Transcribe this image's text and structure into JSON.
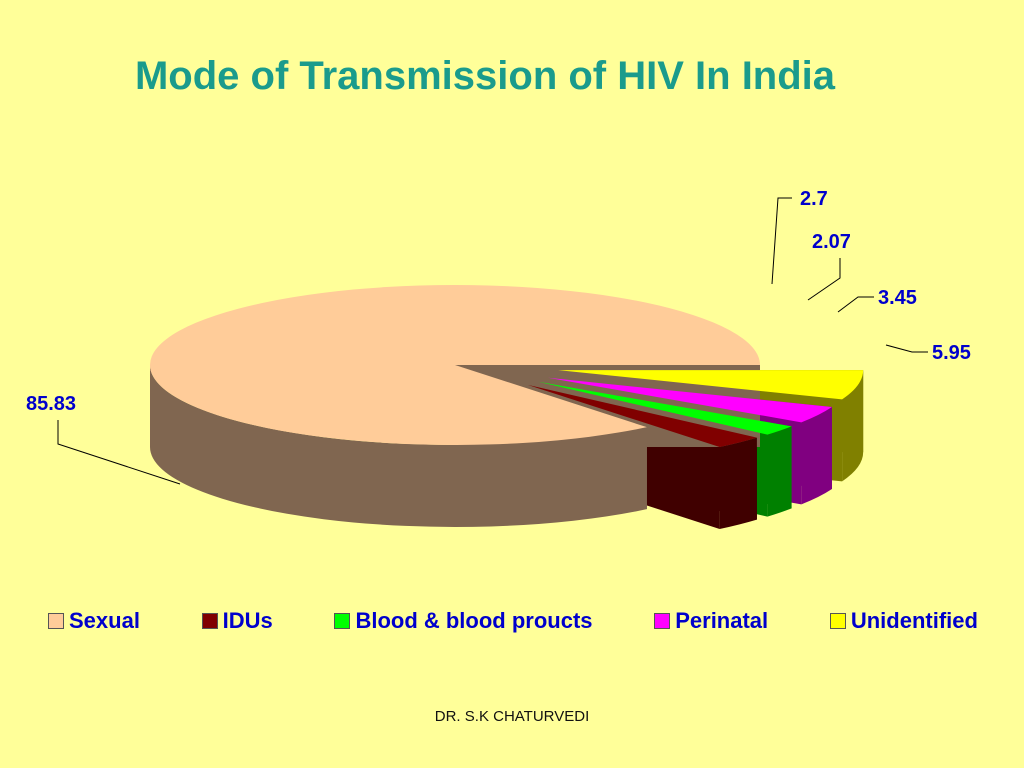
{
  "slide": {
    "title": "Mode of Transmission of HIV In India",
    "footer": "DR. S.K CHATURVEDI"
  },
  "chart_data": {
    "type": "pie",
    "title": "Mode of Transmission of HIV In India",
    "style": "3D exploded pie",
    "legend_position": "bottom",
    "categories": [
      "Sexual",
      "IDUs",
      "Blood & blood proucts",
      "Perinatal",
      "Unidentified"
    ],
    "values": [
      85.83,
      2.7,
      2.07,
      3.45,
      5.95
    ],
    "data_labels": [
      "85.83",
      "2.7",
      "2.07",
      "3.45",
      "5.95"
    ],
    "colors": [
      "#FFCC99",
      "#800000",
      "#00FF00",
      "#FF00FF",
      "#FFFF00"
    ]
  }
}
